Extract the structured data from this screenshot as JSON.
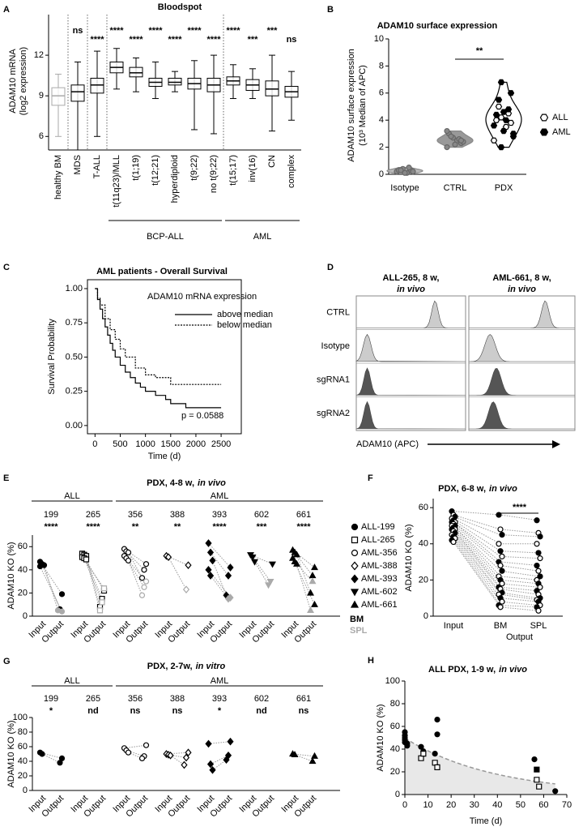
{
  "chart_data": [
    {
      "type": "box",
      "panel": "A",
      "title": "Bloodspot",
      "ylabel": [
        "ADAM10 mRNA",
        "(log2 expression)"
      ],
      "categories": [
        "healthy BM",
        "MDS",
        "T-ALL",
        "t(11q23)/MLL",
        "t(1;19)",
        "t(12;21)",
        "hyperdiploid",
        "t(9;22)",
        "no t(9;22)",
        "t(15;17)",
        "inv(16)",
        "CN",
        "complex"
      ],
      "boxes": [
        [
          6.0,
          8.3,
          9.0,
          9.6,
          10.6
        ],
        [
          5.0,
          8.6,
          9.3,
          9.8,
          11.5
        ],
        [
          6.0,
          9.2,
          9.8,
          10.3,
          12.3
        ],
        [
          9.5,
          10.7,
          11.1,
          11.5,
          12.5
        ],
        [
          9.3,
          10.4,
          10.7,
          11.1,
          11.8
        ],
        [
          8.8,
          9.7,
          10.0,
          10.3,
          11.5
        ],
        [
          9.3,
          9.8,
          10.0,
          10.3,
          10.8
        ],
        [
          6.5,
          9.5,
          9.9,
          10.3,
          11.6
        ],
        [
          6.2,
          9.3,
          9.8,
          10.3,
          12.0
        ],
        [
          8.8,
          9.8,
          10.1,
          10.4,
          11.3
        ],
        [
          8.8,
          9.4,
          9.8,
          10.2,
          11.0
        ],
        [
          6.4,
          9.0,
          9.5,
          10.1,
          12.0
        ],
        [
          7.2,
          8.9,
          9.3,
          9.7,
          10.8
        ]
      ],
      "colors": [
        "#aaaaaa",
        "#000000",
        "#000000",
        "#000000",
        "#000000",
        "#000000",
        "#000000",
        "#000000",
        "#000000",
        "#000000",
        "#000000",
        "#000000",
        "#000000"
      ],
      "significance": [
        null,
        "ns",
        "****",
        "****",
        "****",
        "****",
        "****",
        "****",
        "****",
        "****",
        "***",
        "***",
        "ns"
      ],
      "groups": [
        {
          "name": "BCP-ALL",
          "span": [
            3,
            8
          ]
        },
        {
          "name": "AML",
          "span": [
            9,
            12
          ]
        }
      ],
      "ylim": [
        5,
        15
      ],
      "yticks": [
        6,
        9,
        12
      ]
    },
    {
      "type": "violin",
      "panel": "B",
      "title": "ADAM10 surface expression",
      "ylabel": [
        "ADAM10 surface expression",
        "(10³ Median of APC)"
      ],
      "categories": [
        "Isotype",
        "CTRL",
        "PDX"
      ],
      "controls": [
        [
          0.2,
          0.3,
          0.1,
          0.4,
          0.3,
          0.2,
          0.5,
          0.1,
          0.3
        ],
        [
          2.0,
          2.3,
          2.5,
          2.7,
          3.0,
          2.4,
          2.6,
          2.2,
          2.8,
          3.2,
          2.5
        ]
      ],
      "series": [
        {
          "name": "ALL",
          "filled": false,
          "values": [
            2.5,
            3.5,
            4.0,
            4.5,
            5.0,
            3.8,
            4.2
          ]
        },
        {
          "name": "AML",
          "filled": true,
          "values": [
            2.0,
            2.8,
            3.2,
            3.6,
            4.0,
            4.4,
            4.8,
            5.5,
            6.0,
            6.8,
            3.0,
            4.6
          ]
        }
      ],
      "colors": [
        "#bbbbbb",
        "#999999",
        "#ffffff"
      ],
      "significance": "**",
      "ylim": [
        0,
        10
      ],
      "yticks": [
        0,
        2,
        4,
        6,
        8,
        10
      ]
    },
    {
      "type": "survival",
      "panel": "C",
      "title": "AML patients - Overall Survival",
      "xlabel": "Time (d)",
      "ylabel": "Survival Probability",
      "legend_title": "ADAM10 mRNA expression",
      "series": [
        {
          "name": "above median",
          "dash": "solid",
          "x": [
            0,
            50,
            100,
            150,
            200,
            250,
            300,
            350,
            400,
            500,
            600,
            700,
            800,
            900,
            1000,
            1200,
            1400,
            1500,
            1800,
            2500
          ],
          "y": [
            1,
            0.92,
            0.85,
            0.78,
            0.72,
            0.66,
            0.6,
            0.55,
            0.5,
            0.44,
            0.39,
            0.35,
            0.31,
            0.28,
            0.25,
            0.22,
            0.19,
            0.16,
            0.13,
            0.13
          ]
        },
        {
          "name": "below median",
          "dash": "dotted",
          "x": [
            0,
            50,
            100,
            200,
            300,
            400,
            500,
            600,
            800,
            1000,
            1200,
            1400,
            1500,
            2500
          ],
          "y": [
            1,
            0.93,
            0.88,
            0.78,
            0.7,
            0.63,
            0.56,
            0.5,
            0.42,
            0.37,
            0.35,
            0.35,
            0.3,
            0.3
          ]
        }
      ],
      "annotation": "p = 0.0588",
      "xlim": [
        -150,
        2900
      ],
      "xticks": [
        0,
        500,
        1000,
        1500,
        2000,
        2500
      ],
      "ylim": [
        -0.06,
        1.065
      ],
      "yticks": [
        {
          "value": 0,
          "label": "0.00"
        },
        {
          "value": 0.25,
          "label": "0.25"
        },
        {
          "value": 0.5,
          "label": "0.50"
        },
        {
          "value": 0.75,
          "label": "0.75"
        },
        {
          "value": 1,
          "label": "1.00"
        }
      ]
    },
    {
      "type": "flow",
      "panel": "D",
      "columns": [
        {
          "title": "ALL-265, 8 w,",
          "title_italic": "in vivo"
        },
        {
          "title": "AML-661, 8 w,",
          "title_italic": "in vivo"
        }
      ],
      "rows": [
        "CTRL",
        "Isotype",
        "sgRNA1",
        "sgRNA2"
      ],
      "xlabel": "ADAM10 (APC)"
    },
    {
      "type": "paired",
      "panel": "E",
      "title": "PDX, 4-8 w,",
      "title_italic": "in vivo",
      "ylabel": "ADAM10 KO (%)",
      "groups": [
        {
          "name": "ALL",
          "span": [
            0,
            1
          ]
        },
        {
          "name": "AML",
          "span": [
            2,
            6
          ]
        }
      ],
      "x_labels": [
        "Input",
        "Output"
      ],
      "samples": [
        {
          "name": "199",
          "marker": "circle",
          "filled": true,
          "significance": "****",
          "input": [
            47,
            45,
            44,
            43
          ],
          "bm": [
            19,
            6
          ],
          "spl": [
            5,
            4
          ]
        },
        {
          "name": "265",
          "marker": "square",
          "filled": false,
          "significance": "****",
          "input": [
            54,
            53,
            52,
            51,
            50,
            49
          ],
          "bm": [
            22,
            15,
            8
          ],
          "spl": [
            24,
            12,
            5
          ]
        },
        {
          "name": "356",
          "marker": "circle",
          "filled": false,
          "significance": "**",
          "input": [
            58,
            56,
            55,
            52,
            50,
            48
          ],
          "bm": [
            45,
            40,
            33
          ],
          "spl": [
            30,
            25,
            18
          ]
        },
        {
          "name": "388",
          "marker": "diamond",
          "filled": false,
          "significance": "**",
          "input": [
            52,
            51
          ],
          "bm": [
            44
          ],
          "spl": [
            23
          ]
        },
        {
          "name": "393",
          "marker": "diamond",
          "filled": true,
          "significance": "****",
          "input": [
            63,
            55,
            48,
            40,
            35
          ],
          "bm": [
            42,
            35,
            18
          ],
          "spl": [
            16,
            15
          ]
        },
        {
          "name": "602",
          "marker": "triangle-down",
          "filled": true,
          "significance": "***",
          "input": [
            53,
            51,
            47
          ],
          "bm": [
            45
          ],
          "spl": [
            30,
            27
          ]
        },
        {
          "name": "661",
          "marker": "triangle",
          "filled": true,
          "significance": "****",
          "input": [
            57,
            55,
            53,
            50,
            47,
            45
          ],
          "bm": [
            42,
            35,
            20,
            10
          ],
          "spl": [
            30,
            5
          ]
        }
      ],
      "legend": [
        "ALL-199",
        "ALL-265",
        "AML-356",
        "AML-388",
        "AML-393",
        "AML-602",
        "AML-661"
      ],
      "tissue_legend": [
        {
          "name": "BM",
          "color": "#000000"
        },
        {
          "name": "SPL",
          "color": "#aaaaaa"
        }
      ],
      "ylim": [
        0,
        70
      ],
      "yticks": [
        0,
        20,
        40,
        60
      ]
    },
    {
      "type": "paired-line",
      "panel": "F",
      "title": "PDX, 6-8 w,",
      "title_italic": "in vivo",
      "ylabel": "ADAM10 KO (%)",
      "categories": [
        "Input",
        "BM",
        "SPL"
      ],
      "xlabel": "Output",
      "significance": "****",
      "values": [
        [
          58,
          56,
          55,
          54,
          53,
          52,
          52,
          51,
          50,
          50,
          49,
          48,
          48,
          47,
          46,
          45,
          44,
          43,
          42,
          41
        ],
        [
          56,
          48,
          45,
          40,
          36,
          33,
          30,
          28,
          25,
          22,
          20,
          18,
          16,
          15,
          13,
          12,
          10,
          8,
          6,
          5
        ],
        [
          53,
          46,
          44,
          40,
          35,
          32,
          28,
          25,
          22,
          20,
          18,
          16,
          14,
          12,
          10,
          9,
          8,
          6,
          5,
          3
        ]
      ],
      "ylim": [
        0,
        65
      ],
      "yticks": [
        0,
        20,
        40,
        60
      ]
    },
    {
      "type": "paired",
      "panel": "G",
      "title": "PDX, 2-7w,",
      "title_italic": "in vitro",
      "ylabel": "ADAM10 KO (%)",
      "groups": [
        {
          "name": "ALL",
          "span": [
            0,
            1
          ]
        },
        {
          "name": "AML",
          "span": [
            2,
            6
          ]
        }
      ],
      "x_labels": [
        "Input",
        "Output"
      ],
      "samples": [
        {
          "name": "199",
          "marker": "circle",
          "filled": true,
          "significance": "*",
          "input": [
            52,
            50
          ],
          "output": [
            44,
            38
          ]
        },
        {
          "name": "265",
          "marker": "square",
          "filled": false,
          "significance": "nd",
          "input": [],
          "output": []
        },
        {
          "name": "356",
          "marker": "circle",
          "filled": false,
          "significance": "ns",
          "input": [
            58,
            55,
            52
          ],
          "output": [
            62,
            47,
            44
          ]
        },
        {
          "name": "388",
          "marker": "diamond",
          "filled": false,
          "significance": "ns",
          "input": [
            50,
            49,
            48
          ],
          "output": [
            52,
            45,
            35
          ]
        },
        {
          "name": "393",
          "marker": "diamond",
          "filled": true,
          "significance": "*",
          "input": [
            64,
            36,
            28
          ],
          "output": [
            67,
            48,
            42
          ]
        },
        {
          "name": "602",
          "marker": "triangle-down",
          "filled": true,
          "significance": "nd",
          "input": [],
          "output": []
        },
        {
          "name": "661",
          "marker": "triangle",
          "filled": true,
          "significance": "ns",
          "input": [
            50,
            49
          ],
          "output": [
            47,
            40
          ]
        }
      ],
      "ylim": [
        0,
        100
      ],
      "yticks": [
        0,
        20,
        40,
        60,
        80,
        100
      ]
    },
    {
      "type": "scatter",
      "panel": "H",
      "title": "ALL PDX, 1-9 w,",
      "title_italic": "in vivo",
      "xlabel": "Time (d)",
      "ylabel": "ADAM10 KO (%)",
      "series": [
        {
          "marker": "circle",
          "filled": true,
          "x": [
            0,
            0,
            0,
            0,
            0,
            1,
            1,
            7,
            8,
            13,
            14,
            14,
            56,
            65
          ],
          "y": [
            55,
            52,
            50,
            48,
            46,
            45,
            43,
            42,
            38,
            36,
            66,
            53,
            31,
            3
          ]
        },
        {
          "marker": "square",
          "filled": false,
          "x": [
            7,
            8,
            13,
            14,
            57,
            58
          ],
          "y": [
            32,
            36,
            28,
            24,
            13,
            7
          ]
        },
        {
          "marker": "square",
          "filled": true,
          "x": [
            57
          ],
          "y": [
            22
          ]
        }
      ],
      "fit": true,
      "xlim": [
        0,
        70
      ],
      "xticks": [
        0,
        10,
        20,
        30,
        40,
        50,
        60,
        70
      ],
      "ylim": [
        0,
        100
      ],
      "yticks": [
        0,
        20,
        40,
        60,
        80,
        100
      ]
    }
  ]
}
